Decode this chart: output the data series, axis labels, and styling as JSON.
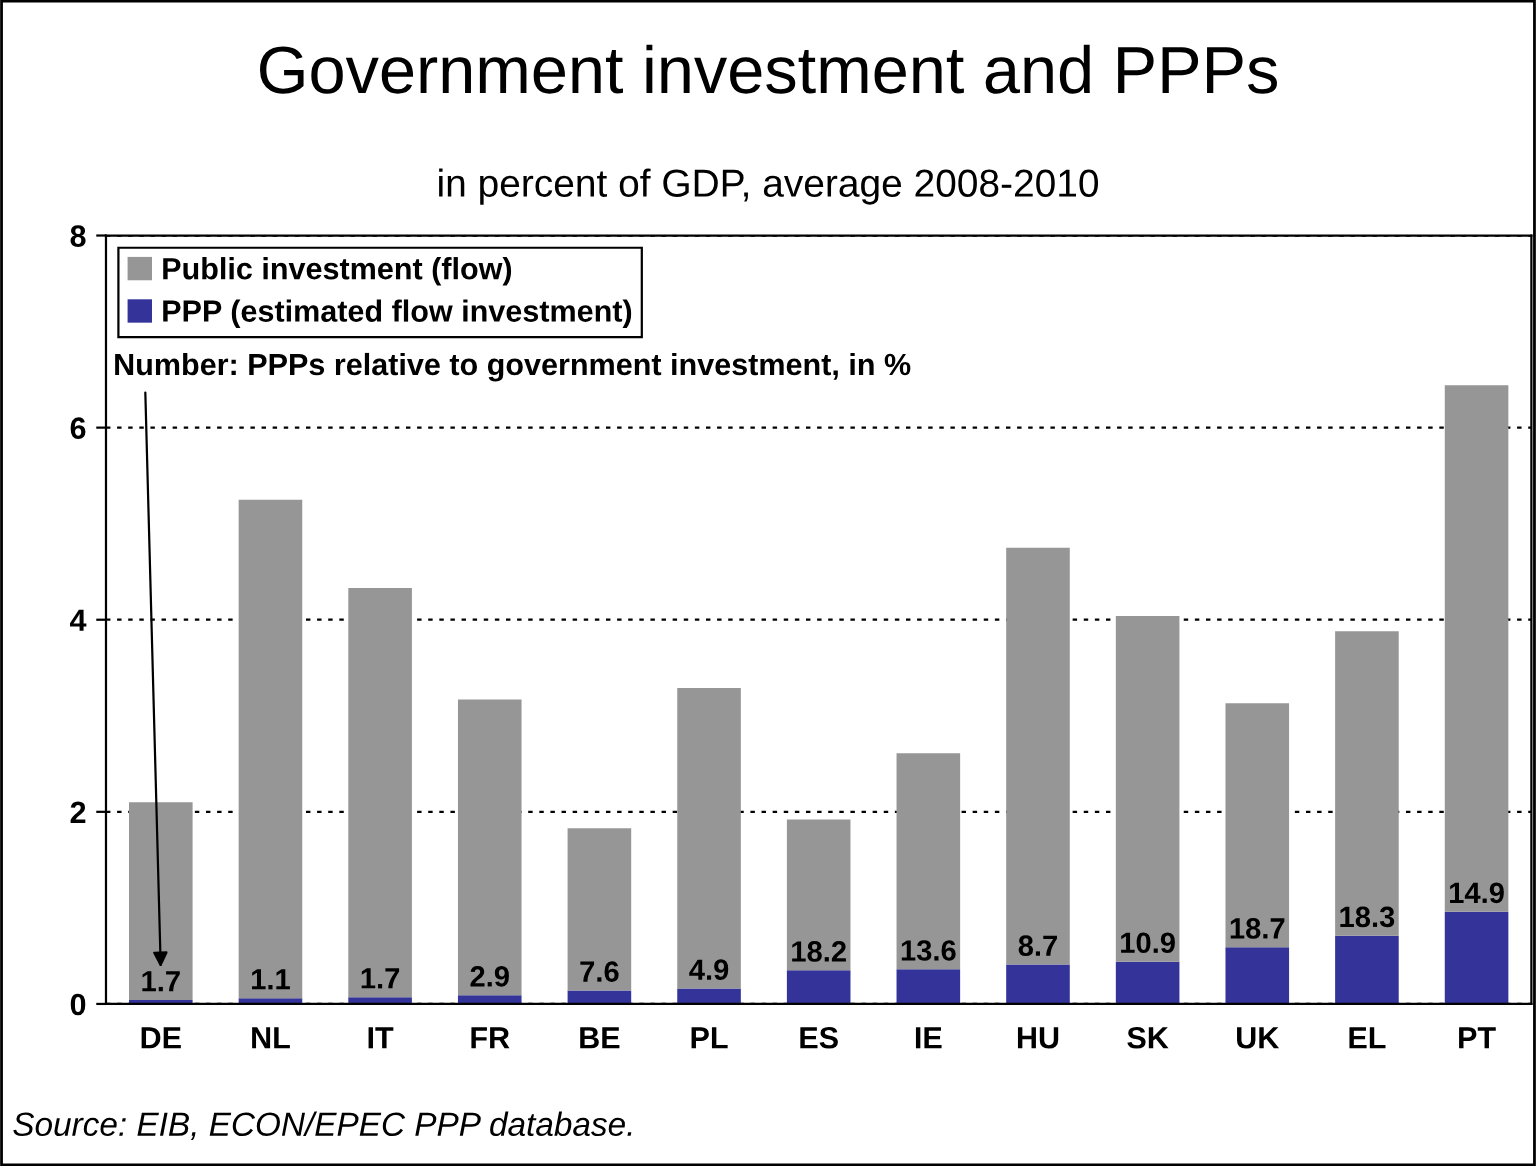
{
  "chart_data": {
    "type": "bar",
    "title": "Government investment and PPPs",
    "subtitle": "in percent of GDP, average 2008-2010",
    "categories": [
      "DE",
      "NL",
      "IT",
      "FR",
      "BE",
      "PL",
      "ES",
      "IE",
      "HU",
      "SK",
      "UK",
      "EL",
      "PT"
    ],
    "stacked": true,
    "series": [
      {
        "name": "PPP (estimated flow investment)",
        "color": "#333399",
        "values": [
          0.04,
          0.06,
          0.07,
          0.09,
          0.14,
          0.16,
          0.35,
          0.36,
          0.41,
          0.44,
          0.59,
          0.71,
          0.96
        ]
      },
      {
        "name": "Public investment (flow)",
        "color": "#969696",
        "values": [
          2.06,
          5.19,
          4.26,
          3.08,
          1.69,
          3.13,
          1.57,
          2.25,
          4.34,
          3.6,
          2.54,
          3.17,
          5.48
        ]
      }
    ],
    "ylim": [
      0,
      8
    ],
    "yticks": [
      0,
      2,
      4,
      6,
      8
    ],
    "grid": "y",
    "legend": "top left",
    "annotations": [
      "Number: PPPs relative to government investment, in %",
      {
        "text": "1.7",
        "x": "DE",
        "y": 0.04
      },
      {
        "text": "1.1",
        "x": "NL",
        "y": 0.06
      },
      {
        "text": "1.7",
        "x": "IT",
        "y": 0.07
      },
      {
        "text": "2.9",
        "x": "FR",
        "y": 0.09
      },
      {
        "text": "7.6",
        "x": "BE",
        "y": 0.14
      },
      {
        "text": "4.9",
        "x": "PL",
        "y": 0.16
      },
      {
        "text": "18.2",
        "x": "ES",
        "y": 0.35
      },
      {
        "text": "13.6",
        "x": "IE",
        "y": 0.36
      },
      {
        "text": "8.7",
        "x": "HU",
        "y": 0.41
      },
      {
        "text": "10.9",
        "x": "SK",
        "y": 0.44
      },
      {
        "text": "18.7",
        "x": "UK",
        "y": 0.59
      },
      {
        "text": "18.3",
        "x": "EL",
        "y": 0.71
      },
      {
        "text": "14.9",
        "x": "PT",
        "y": 0.96
      },
      "Source: EIB, ECON/EPEC PPP database."
    ]
  }
}
